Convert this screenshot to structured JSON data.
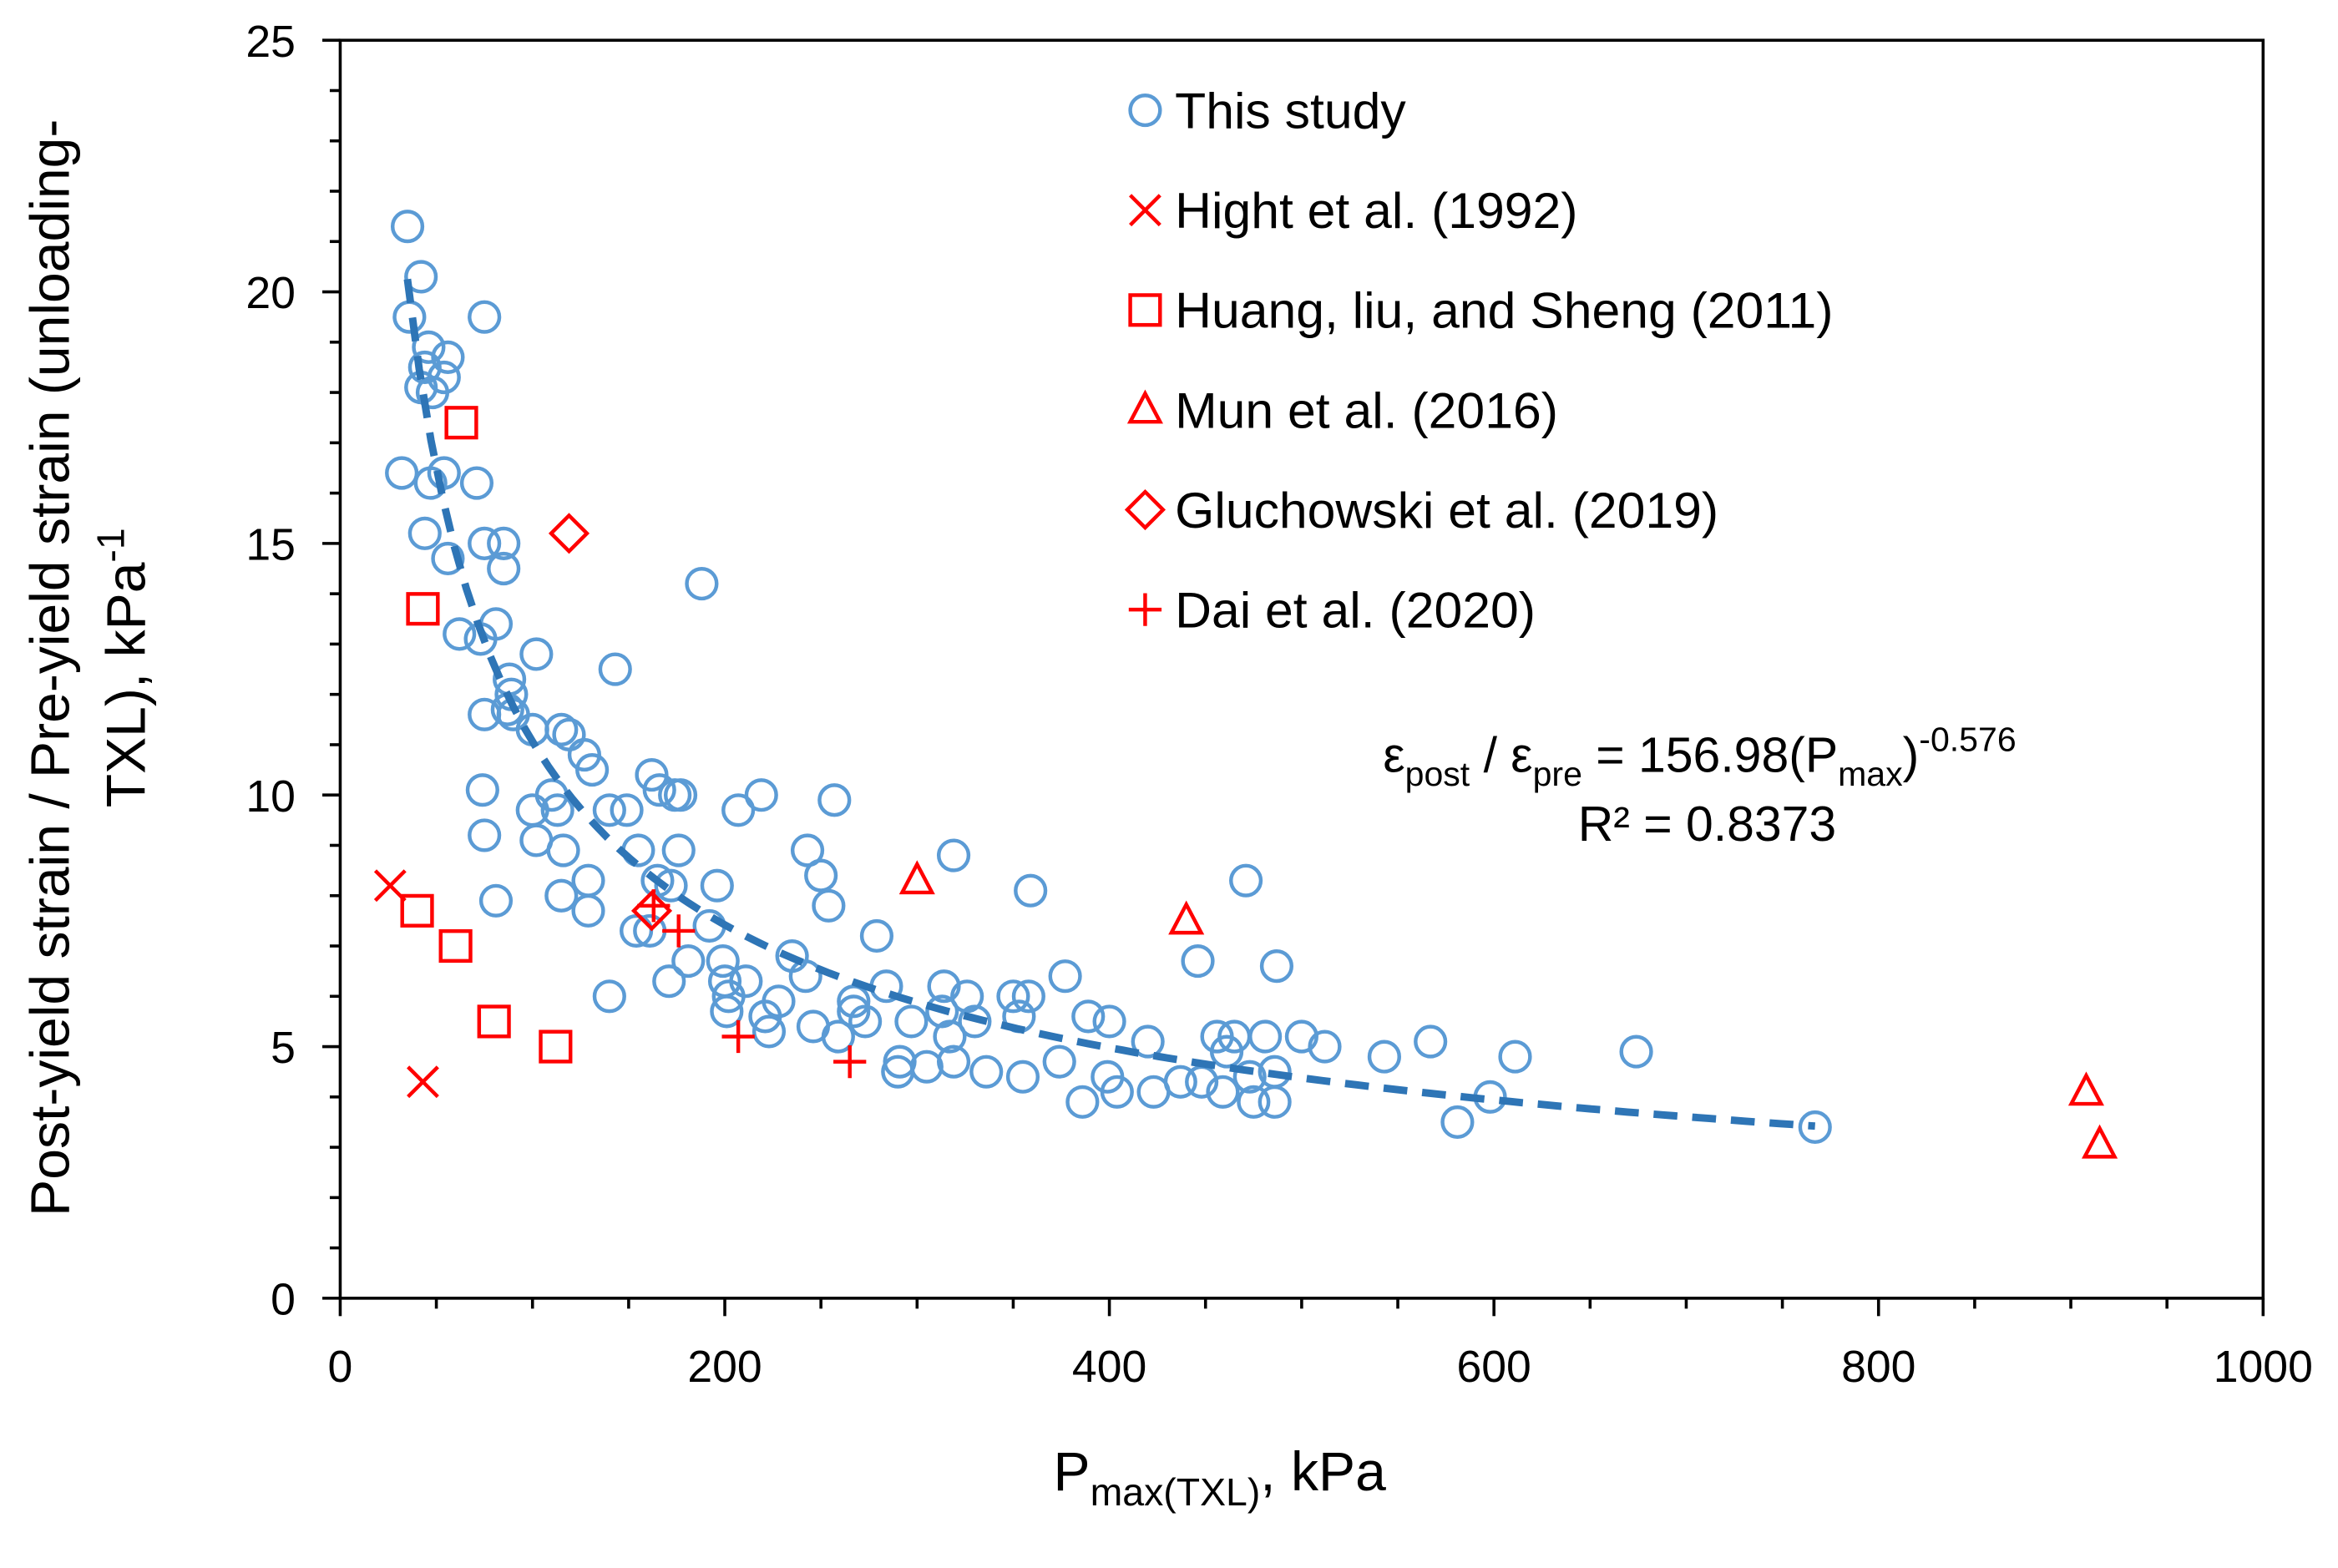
{
  "chart_data": {
    "type": "scatter",
    "x_label": {
      "main": "P",
      "sub": "max(TXL)",
      "rest": ", kPa"
    },
    "y_label": {
      "line1": "Post-yield strain / Pre-yield strain (unloading-",
      "line2": "TXL), kPa",
      "sup": "-1"
    },
    "xlim": [
      0,
      1000
    ],
    "xticks": [
      0,
      200,
      400,
      600,
      800,
      1000
    ],
    "x_minor_ticks": [
      50,
      100,
      150,
      250,
      300,
      350,
      450,
      500,
      550,
      650,
      700,
      750,
      850,
      900,
      950
    ],
    "ylim": [
      0,
      25
    ],
    "yticks": [
      0,
      5,
      10,
      15,
      20,
      25
    ],
    "y_minor_ticks": [
      1,
      2,
      3,
      4,
      6,
      7,
      8,
      9,
      11,
      12,
      13,
      14,
      16,
      17,
      18,
      19,
      21,
      22,
      23,
      24
    ],
    "grid": false,
    "legend": "top-right",
    "series": [
      {
        "name": "This study",
        "color": "#5b9bd5",
        "marker": "circle",
        "x": [
          35,
          42,
          36,
          75,
          46,
          56,
          44,
          54,
          42,
          48,
          32,
          47,
          54,
          71,
          44,
          75,
          85,
          85,
          56,
          188,
          81,
          62,
          73,
          102,
          143,
          88,
          89,
          87,
          75,
          90,
          100,
          115,
          119,
          127,
          131,
          162,
          166,
          174,
          177,
          74,
          110,
          219,
          100,
          113,
          140,
          149,
          207,
          257,
          75,
          102,
          116,
          155,
          176,
          243,
          319,
          250,
          129,
          165,
          172,
          196,
          81,
          115,
          129,
          254,
          359,
          471,
          154,
          161,
          192,
          279,
          181,
          199,
          235,
          171,
          200,
          211,
          242,
          377,
          446,
          487,
          140,
          202,
          228,
          267,
          284,
          314,
          326,
          350,
          358,
          201,
          221,
          267,
          273,
          297,
          313,
          330,
          353,
          389,
          400,
          246,
          259,
          223,
          317,
          456,
          465,
          481,
          500,
          512,
          420,
          461,
          567,
          543,
          611,
          674,
          291,
          305,
          319,
          336,
          355,
          374,
          399,
          290,
          404,
          423,
          437,
          448,
          459,
          473,
          486,
          386,
          475,
          486,
          598,
          581,
          767
        ],
        "y": [
          21.3,
          20.3,
          19.5,
          19.5,
          18.9,
          18.7,
          18.5,
          18.3,
          18.1,
          18,
          16.4,
          16.2,
          16.4,
          16.2,
          15.2,
          15,
          15,
          14.5,
          14.7,
          14.2,
          13.4,
          13.2,
          13.1,
          12.8,
          12.5,
          12.3,
          12,
          11.7,
          11.6,
          11.6,
          11.3,
          11.3,
          11.2,
          10.8,
          10.5,
          10.4,
          10.1,
          10,
          10,
          10.1,
          10,
          10,
          9.7,
          9.7,
          9.7,
          9.7,
          9.7,
          9.9,
          9.2,
          9.1,
          8.9,
          8.9,
          8.9,
          8.9,
          8.8,
          8.4,
          8.3,
          8.3,
          8.2,
          8.2,
          7.9,
          8,
          7.7,
          7.8,
          8.1,
          8.3,
          7.3,
          7.3,
          7.4,
          7.2,
          6.7,
          6.7,
          6.8,
          6.3,
          6.3,
          6.3,
          6.4,
          6.4,
          6.7,
          6.6,
          6,
          6,
          5.9,
          5.9,
          6.2,
          6.2,
          6,
          6,
          6,
          5.7,
          5.6,
          5.7,
          5.5,
          5.5,
          5.7,
          5.5,
          5.6,
          5.6,
          5.5,
          5.4,
          5.2,
          5.3,
          5.2,
          5.2,
          5.2,
          5.2,
          5.2,
          5,
          5.1,
          4.9,
          5.1,
          4.8,
          4.8,
          4.9,
          4.7,
          4.6,
          4.7,
          4.5,
          4.4,
          4.7,
          4.4,
          4.5,
          4.1,
          4.1,
          4.3,
          4.3,
          4.1,
          4.4,
          4.5,
          3.9,
          3.9,
          3.9,
          4,
          3.5,
          3.4
        ]
      },
      {
        "name": "Hight et al. (1992)",
        "color": "#ff0000",
        "marker": "x",
        "x": [
          26,
          43
        ],
        "y": [
          8.2,
          4.3
        ]
      },
      {
        "name": "Huang, liu, and Sheng (2011)",
        "color": "#ff0000",
        "marker": "square",
        "x": [
          63,
          43,
          40,
          60,
          80,
          112
        ],
        "y": [
          17.4,
          13.7,
          7.7,
          7,
          5.5,
          5
        ]
      },
      {
        "name": "Mun et al. (2016)",
        "color": "#ff0000",
        "marker": "triangle",
        "x": [
          300,
          440,
          908,
          915
        ],
        "y": [
          8.3,
          7.5,
          4.1,
          3.05
        ]
      },
      {
        "name": "Gluchowski et al. (2019)",
        "color": "#ff0000",
        "marker": "diamond",
        "x": [
          119,
          162
        ],
        "y": [
          15.2,
          7.7
        ]
      },
      {
        "name": "Dai et al. (2020)",
        "color": "#ff0000",
        "marker": "plus",
        "x": [
          163,
          176,
          207,
          265
        ],
        "y": [
          7.8,
          7.3,
          5.2,
          4.7
        ]
      }
    ],
    "trendline": {
      "color": "#2e75b6",
      "coefficient": 156.98,
      "exponent": -0.576,
      "x_range": [
        35,
        767
      ],
      "equation": {
        "eps1": "ε",
        "sub1": "post",
        "mid": " / ε",
        "sub2": "pre",
        "eq": " = ",
        "open": "(P",
        "sub3": "max",
        "close": ")"
      },
      "r_squared": "R² = 0.8373"
    }
  }
}
